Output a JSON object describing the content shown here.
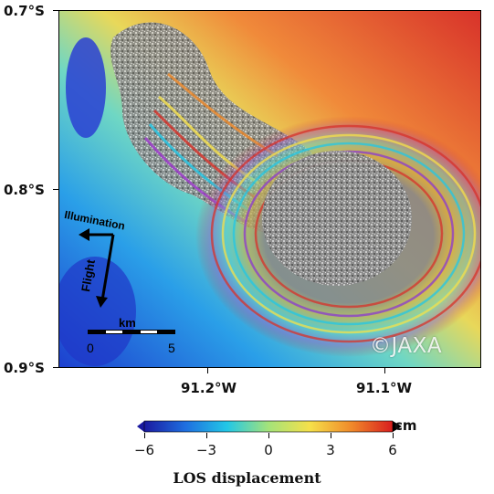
{
  "map": {
    "lat_labels": [
      "0.7°S",
      "0.8°S",
      "0.9°S"
    ],
    "lon_labels": [
      "91.2°W",
      "91.1°W"
    ],
    "illumination_label": "Illumination",
    "flight_label": "Flight",
    "scale": {
      "unit": "km",
      "start": "0",
      "end": "5"
    },
    "copyright": "©JAXA"
  },
  "colorbar": {
    "unit": "cm",
    "title": "LOS displacement",
    "ticks": [
      "−6",
      "−3",
      "0",
      "3",
      "6"
    ],
    "range": [
      -6,
      6
    ],
    "colors": [
      "#1b1aa0",
      "#1f6fe0",
      "#22c7e6",
      "#a4e37a",
      "#f5e04a",
      "#f08a2a",
      "#d81e1e"
    ]
  }
}
